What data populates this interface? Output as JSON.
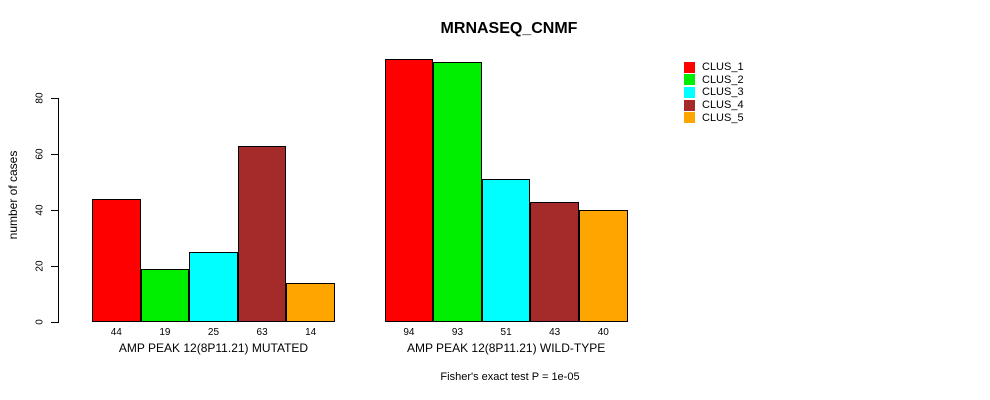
{
  "chart_data": {
    "type": "bar",
    "title": "MRNASEQ_CNMF",
    "ylabel": "number of cases",
    "xlabel": "",
    "categories": [
      "AMP PEAK 12(8P11.21) MUTATED",
      "AMP PEAK 12(8P11.21) WILD-TYPE"
    ],
    "series": [
      {
        "name": "CLUS_1",
        "color": "#FF0000",
        "values": [
          44,
          94
        ]
      },
      {
        "name": "CLUS_2",
        "color": "#00EE00",
        "values": [
          19,
          93
        ]
      },
      {
        "name": "CLUS_3",
        "color": "#00FFFF",
        "values": [
          25,
          51
        ]
      },
      {
        "name": "CLUS_4",
        "color": "#A52A2A",
        "values": [
          63,
          43
        ]
      },
      {
        "name": "CLUS_5",
        "color": "#FFA500",
        "values": [
          14,
          40
        ]
      }
    ],
    "bar_value_labels": [
      [
        "44",
        "19",
        "25",
        "63",
        "14"
      ],
      [
        "94",
        "93",
        "51",
        "43",
        "40"
      ]
    ],
    "yticks": [
      0,
      20,
      40,
      60,
      80
    ],
    "ylim": [
      0,
      95
    ],
    "grid": false,
    "legend_position": "top-right-outside",
    "annotation": "Fisher's exact test P = 1e-05"
  }
}
